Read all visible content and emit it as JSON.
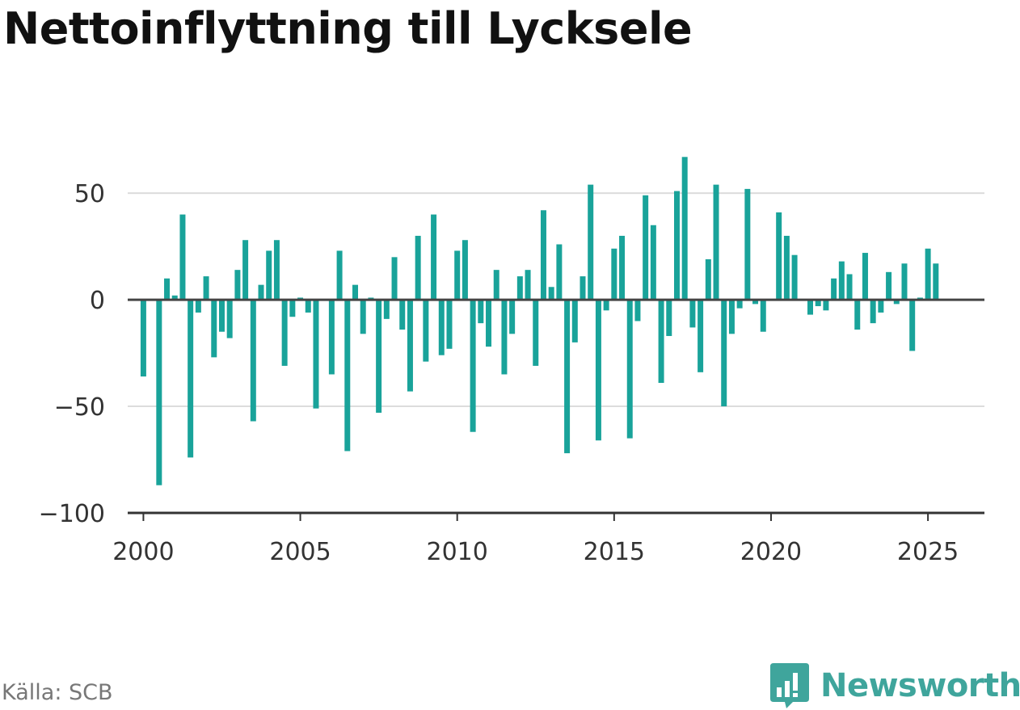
{
  "title": "Nettoinflyttning till Lycksele",
  "source": "Källa: SCB",
  "brand": {
    "name": "Newsworthy",
    "icon": "newsworthy-chart-bubble-icon",
    "color": "#3fa59c"
  },
  "colors": {
    "bar": "#19a39a",
    "zero_line": "#444444",
    "grid": "#dcdcdc",
    "axis": "#333333"
  },
  "chart_data": {
    "type": "bar",
    "title": "Nettoinflyttning till Lycksele",
    "xlabel": "",
    "ylabel": "",
    "ylim": [
      -100,
      80
    ],
    "xlim": [
      1999.5,
      2026.8
    ],
    "grid": true,
    "yticks": [
      -100,
      -50,
      0,
      50
    ],
    "ytick_labels": [
      "−100",
      "−50",
      "0",
      "50"
    ],
    "xticks": [
      2000,
      2005,
      2010,
      2015,
      2020,
      2025
    ],
    "xtick_labels": [
      "2000",
      "2005",
      "2010",
      "2015",
      "2020",
      "2025"
    ],
    "x": [
      2000.0,
      2000.25,
      2000.5,
      2000.75,
      2001.0,
      2001.25,
      2001.5,
      2001.75,
      2002.0,
      2002.25,
      2002.5,
      2002.75,
      2003.0,
      2003.25,
      2003.5,
      2003.75,
      2004.0,
      2004.25,
      2004.5,
      2004.75,
      2005.0,
      2005.25,
      2005.5,
      2005.75,
      2006.0,
      2006.25,
      2006.5,
      2006.75,
      2007.0,
      2007.25,
      2007.5,
      2007.75,
      2008.0,
      2008.25,
      2008.5,
      2008.75,
      2009.0,
      2009.25,
      2009.5,
      2009.75,
      2010.0,
      2010.25,
      2010.5,
      2010.75,
      2011.0,
      2011.25,
      2011.5,
      2011.75,
      2012.0,
      2012.25,
      2012.5,
      2012.75,
      2013.0,
      2013.25,
      2013.5,
      2013.75,
      2014.0,
      2014.25,
      2014.5,
      2014.75,
      2015.0,
      2015.25,
      2015.5,
      2015.75,
      2016.0,
      2016.25,
      2016.5,
      2016.75,
      2017.0,
      2017.25,
      2017.5,
      2017.75,
      2018.0,
      2018.25,
      2018.5,
      2018.75,
      2019.0,
      2019.25,
      2019.5,
      2019.75,
      2020.0,
      2020.25,
      2020.5,
      2020.75,
      2021.0,
      2021.25,
      2021.5,
      2021.75,
      2022.0,
      2022.25,
      2022.5,
      2022.75,
      2023.0,
      2023.25,
      2023.5,
      2023.75,
      2024.0,
      2024.25,
      2024.5,
      2024.75,
      2025.0,
      2025.25
    ],
    "values": [
      -36,
      0,
      -87,
      10,
      2,
      40,
      -74,
      -6,
      11,
      -27,
      -15,
      -18,
      14,
      28,
      -57,
      7,
      23,
      28,
      -31,
      -8,
      1,
      -6,
      -51,
      0,
      -35,
      23,
      -71,
      7,
      -16,
      1,
      -53,
      -9,
      20,
      -14,
      -43,
      30,
      -29,
      40,
      -26,
      -23,
      23,
      28,
      -62,
      -11,
      -22,
      14,
      -35,
      -16,
      11,
      14,
      -31,
      42,
      6,
      26,
      -72,
      -20,
      11,
      54,
      -66,
      -5,
      24,
      30,
      -65,
      -10,
      49,
      35,
      -39,
      -17,
      51,
      67,
      -13,
      -34,
      19,
      54,
      -50,
      -16,
      -4,
      52,
      -2,
      -15,
      0,
      41,
      30,
      21,
      0,
      -7,
      -3,
      -5,
      10,
      18,
      12,
      -14,
      22,
      -11,
      -6,
      13,
      -2,
      17,
      -24,
      1,
      24,
      17
    ]
  }
}
